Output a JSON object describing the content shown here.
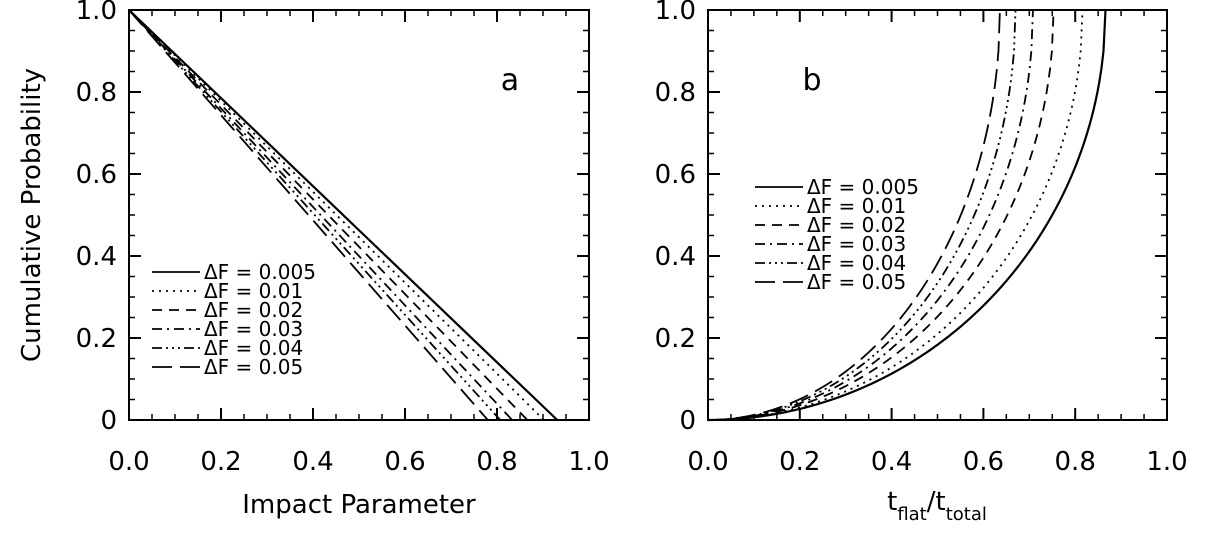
{
  "chart_data": [
    {
      "type": "line",
      "panel_label": "a",
      "xlabel": "Impact Parameter",
      "ylabel": "Cumulative Probability",
      "xlim": [
        0.0,
        1.0
      ],
      "ylim": [
        0.0,
        1.0
      ],
      "x_ticks": [
        "0.0",
        "0.2",
        "0.4",
        "0.6",
        "0.8",
        "1.0"
      ],
      "y_ticks": [
        "0",
        "0.2",
        "0.4",
        "0.6",
        "0.8",
        "1.0"
      ],
      "legend_placement": "bottom-left",
      "grid": false,
      "series": [
        {
          "name": "ΔF = 0.005",
          "x": [
            0.0,
            0.931
          ],
          "y": [
            1.0,
            0.0
          ]
        },
        {
          "name": "ΔF = 0.01",
          "x": [
            0.0,
            0.902
          ],
          "y": [
            1.0,
            0.0
          ]
        },
        {
          "name": "ΔF = 0.02",
          "x": [
            0.0,
            0.866
          ],
          "y": [
            1.0,
            0.0
          ]
        },
        {
          "name": "ΔF = 0.03",
          "x": [
            0.0,
            0.833
          ],
          "y": [
            1.0,
            0.0
          ]
        },
        {
          "name": "ΔF = 0.04",
          "x": [
            0.0,
            0.807
          ],
          "y": [
            1.0,
            0.0
          ]
        },
        {
          "name": "ΔF = 0.05",
          "x": [
            0.0,
            0.78
          ],
          "y": [
            1.0,
            0.0
          ]
        }
      ]
    },
    {
      "type": "line",
      "panel_label": "b",
      "xlabel_main": "t",
      "xlabel_sub1": "flat",
      "xlabel_sep": "/t",
      "xlabel_sub2": "total",
      "ylabel": "",
      "xlim": [
        0.0,
        1.0
      ],
      "ylim": [
        0.0,
        1.0
      ],
      "x_ticks": [
        "0.0",
        "0.2",
        "0.4",
        "0.6",
        "0.8",
        "1.0"
      ],
      "y_ticks": [
        "0",
        "0.2",
        "0.4",
        "0.6",
        "0.8",
        "1.0"
      ],
      "legend_placement": "center-left",
      "grid": false,
      "series": [
        {
          "name": "ΔF = 0.005",
          "max_x": 0.866
        },
        {
          "name": "ΔF = 0.01",
          "max_x": 0.816
        },
        {
          "name": "ΔF = 0.02",
          "max_x": 0.753
        },
        {
          "name": "ΔF = 0.03",
          "max_x": 0.708
        },
        {
          "name": "ΔF = 0.04",
          "max_x": 0.67
        },
        {
          "name": "ΔF = 0.05",
          "max_x": 0.636
        }
      ]
    }
  ]
}
